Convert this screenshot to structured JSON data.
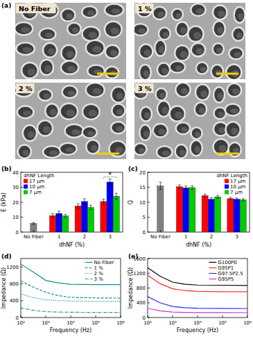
{
  "figure": {
    "panel_a": {
      "label": "(a)",
      "images": [
        {
          "label": "No Fiber"
        },
        {
          "label": "1 %"
        },
        {
          "label": "2 %"
        },
        {
          "label": "3 %"
        }
      ]
    }
  },
  "chart_data": [
    {
      "type": "bar",
      "title": "(b)",
      "x_label": "dhNF (%)",
      "y_label": "E (kPa)",
      "categories": [
        "No Fiber",
        "1",
        "2",
        "3"
      ],
      "ylim": [
        0,
        40
      ],
      "yticks": [
        0,
        10,
        20,
        30,
        40
      ],
      "legend": "upper left",
      "legend_title": "dhNF Length",
      "annotations": [
        "*"
      ],
      "series": [
        {
          "color": "#808080",
          "values": [
            5.8,
            null,
            null,
            null
          ],
          "errors": [
            0.6,
            null,
            null,
            null
          ]
        },
        {
          "name": "17 μm",
          "color": "#ff0000",
          "values": [
            null,
            11,
            17.5,
            20.5
          ],
          "errors": [
            null,
            1.2,
            1.5,
            1.5
          ]
        },
        {
          "name": "10 μm",
          "color": "#0000ff",
          "values": [
            null,
            12.5,
            20.5,
            33.5
          ],
          "errors": [
            null,
            1.5,
            1.8,
            2
          ]
        },
        {
          "name": "7 μm",
          "color": "#00cc00",
          "values": [
            null,
            10.8,
            16.5,
            24
          ],
          "errors": [
            null,
            1,
            1.5,
            2
          ]
        }
      ]
    },
    {
      "type": "bar",
      "title": "(c)",
      "x_label": "dhNF (%)",
      "y_label": "Q",
      "categories": [
        "No Fiber",
        "1",
        "2",
        "3"
      ],
      "ylim": [
        0,
        20
      ],
      "yticks": [
        0,
        5,
        10,
        15,
        20
      ],
      "legend": "upper right",
      "legend_title": "dhNF Length",
      "series": [
        {
          "color": "#808080",
          "values": [
            15.5,
            null,
            null,
            null
          ],
          "errors": [
            1.2,
            null,
            null,
            null
          ]
        },
        {
          "name": "17 μm",
          "color": "#ff0000",
          "values": [
            null,
            15.2,
            12.2,
            11.2
          ],
          "errors": [
            null,
            0.6,
            0.5,
            0.4
          ]
        },
        {
          "name": "10 μm",
          "color": "#0000ff",
          "values": [
            null,
            14.8,
            11,
            11
          ],
          "errors": [
            null,
            0.6,
            0.5,
            0.4
          ]
        },
        {
          "name": "7 μm",
          "color": "#00cc00",
          "values": [
            null,
            14.9,
            11.8,
            10.8
          ],
          "errors": [
            null,
            0.6,
            0.5,
            0.4
          ]
        }
      ]
    },
    {
      "type": "line",
      "title": "(d)",
      "x_label": "Frequency (Hz)",
      "y_label": "Impedance (Ω)",
      "log": "x",
      "x": [
        100,
        316,
        1000,
        3162,
        10000,
        100000,
        1000000
      ],
      "xlim": [
        100,
        1000000
      ],
      "xticks": [
        {
          "value": 100,
          "label": "10²"
        },
        {
          "value": 1000,
          "label": "10³"
        },
        {
          "value": 10000,
          "label": "10⁴"
        },
        {
          "value": 100000,
          "label": "10⁵"
        },
        {
          "value": 1000000,
          "label": "10⁶"
        }
      ],
      "ylim": [
        0,
        1400
      ],
      "yticks": [
        0,
        400,
        800,
        1200
      ],
      "legend": "upper right",
      "series": [
        {
          "name": "No Fiber",
          "color": "#1a8c8c",
          "line_style": "solid",
          "values": [
            1270,
            1080,
            880,
            820,
            790,
            780,
            780
          ]
        },
        {
          "name": "1 %",
          "color": "#1a8c8c",
          "line_style": "dashed",
          "values": [
            870,
            720,
            600,
            520,
            480,
            465,
            460
          ]
        },
        {
          "name": "2 %",
          "color": "#1a8c8c",
          "line_style": "dotted",
          "values": [
            560,
            470,
            420,
            400,
            390,
            385,
            385
          ]
        },
        {
          "name": "3 %",
          "color": "#1a8c8c",
          "line_style": "dashdot",
          "values": [
            230,
            170,
            140,
            130,
            125,
            122,
            120
          ]
        }
      ]
    },
    {
      "type": "line",
      "title": "(e)",
      "x_label": "Frequency (Hz)",
      "y_label": "Impedance (Ω)",
      "log": "x",
      "x": [
        100,
        316,
        1000,
        3162,
        10000,
        100000,
        1000000
      ],
      "xlim": [
        100,
        1000000
      ],
      "xticks": [
        {
          "value": 100,
          "label": "10²"
        },
        {
          "value": 1000,
          "label": "10³"
        },
        {
          "value": 10000,
          "label": "10⁴"
        },
        {
          "value": 100000,
          "label": "10⁵"
        },
        {
          "value": 1000000,
          "label": "10⁶"
        }
      ],
      "ylim": [
        0,
        1600
      ],
      "yticks": [
        0,
        400,
        800,
        1200,
        1600
      ],
      "legend": "upper right",
      "series": [
        {
          "name": "G100P0",
          "color": "#000000",
          "line_style": "solid",
          "values": [
            1350,
            1120,
            960,
            900,
            880,
            875,
            870
          ]
        },
        {
          "name": "G95P1",
          "color": "#ff2a2a",
          "line_style": "solid",
          "values": [
            1150,
            920,
            780,
            730,
            710,
            700,
            700
          ]
        },
        {
          "name": "G97.5P2.5",
          "color": "#2a2aff",
          "line_style": "solid",
          "values": [
            570,
            400,
            300,
            265,
            250,
            248,
            245
          ]
        },
        {
          "name": "G95P5",
          "color": "#d030d0",
          "line_style": "solid",
          "values": [
            250,
            180,
            150,
            140,
            135,
            133,
            132
          ]
        }
      ]
    }
  ]
}
